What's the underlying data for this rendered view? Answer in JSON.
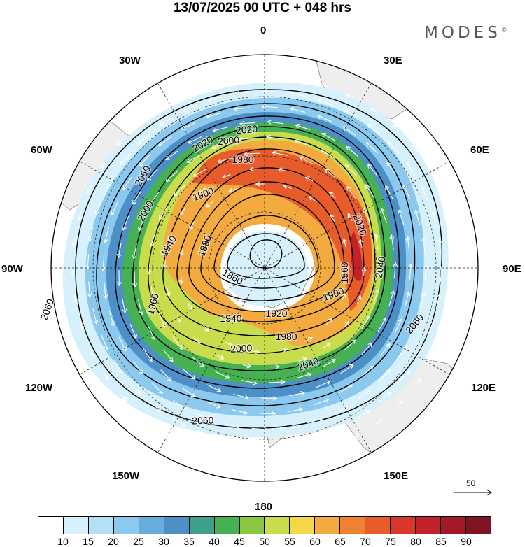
{
  "header": {
    "title": "13/07/2025  00 UTC  + 048 hrs",
    "logo": "MODES"
  },
  "map": {
    "projection": "south polar stereographic",
    "longitude_labels": [
      "0",
      "30E",
      "60E",
      "90E",
      "120E",
      "150E",
      "180",
      "150W",
      "120W",
      "90W",
      "60W",
      "30W"
    ],
    "contour_labels": [
      "2060",
      "2060",
      "2060",
      "2060",
      "2040",
      "2040",
      "2020",
      "2020",
      "2020",
      "2000",
      "2000",
      "2000",
      "1980",
      "1980",
      "1960",
      "1960",
      "1940",
      "1940",
      "1920",
      "1900",
      "1900",
      "1880",
      "1860"
    ],
    "vector_reference": {
      "label": "50"
    },
    "colors": {
      "land": "#eeeeee",
      "contour": "#000000",
      "vectors": "#ffffff",
      "grid": "#222222"
    }
  },
  "colorbar": {
    "ticks": [
      "10",
      "15",
      "20",
      "25",
      "30",
      "35",
      "40",
      "45",
      "50",
      "55",
      "60",
      "65",
      "70",
      "75",
      "80",
      "85",
      "90"
    ],
    "colors": [
      "#ffffff",
      "#d6f0fc",
      "#b4e0f6",
      "#8cc9ef",
      "#68aedd",
      "#4d8fc7",
      "#3ea08a",
      "#46b152",
      "#8ac63f",
      "#c8dc4c",
      "#f5d849",
      "#f3ab3f",
      "#ee8230",
      "#e85b2b",
      "#d8372a",
      "#c0212a",
      "#a3192a",
      "#7f1424"
    ]
  }
}
